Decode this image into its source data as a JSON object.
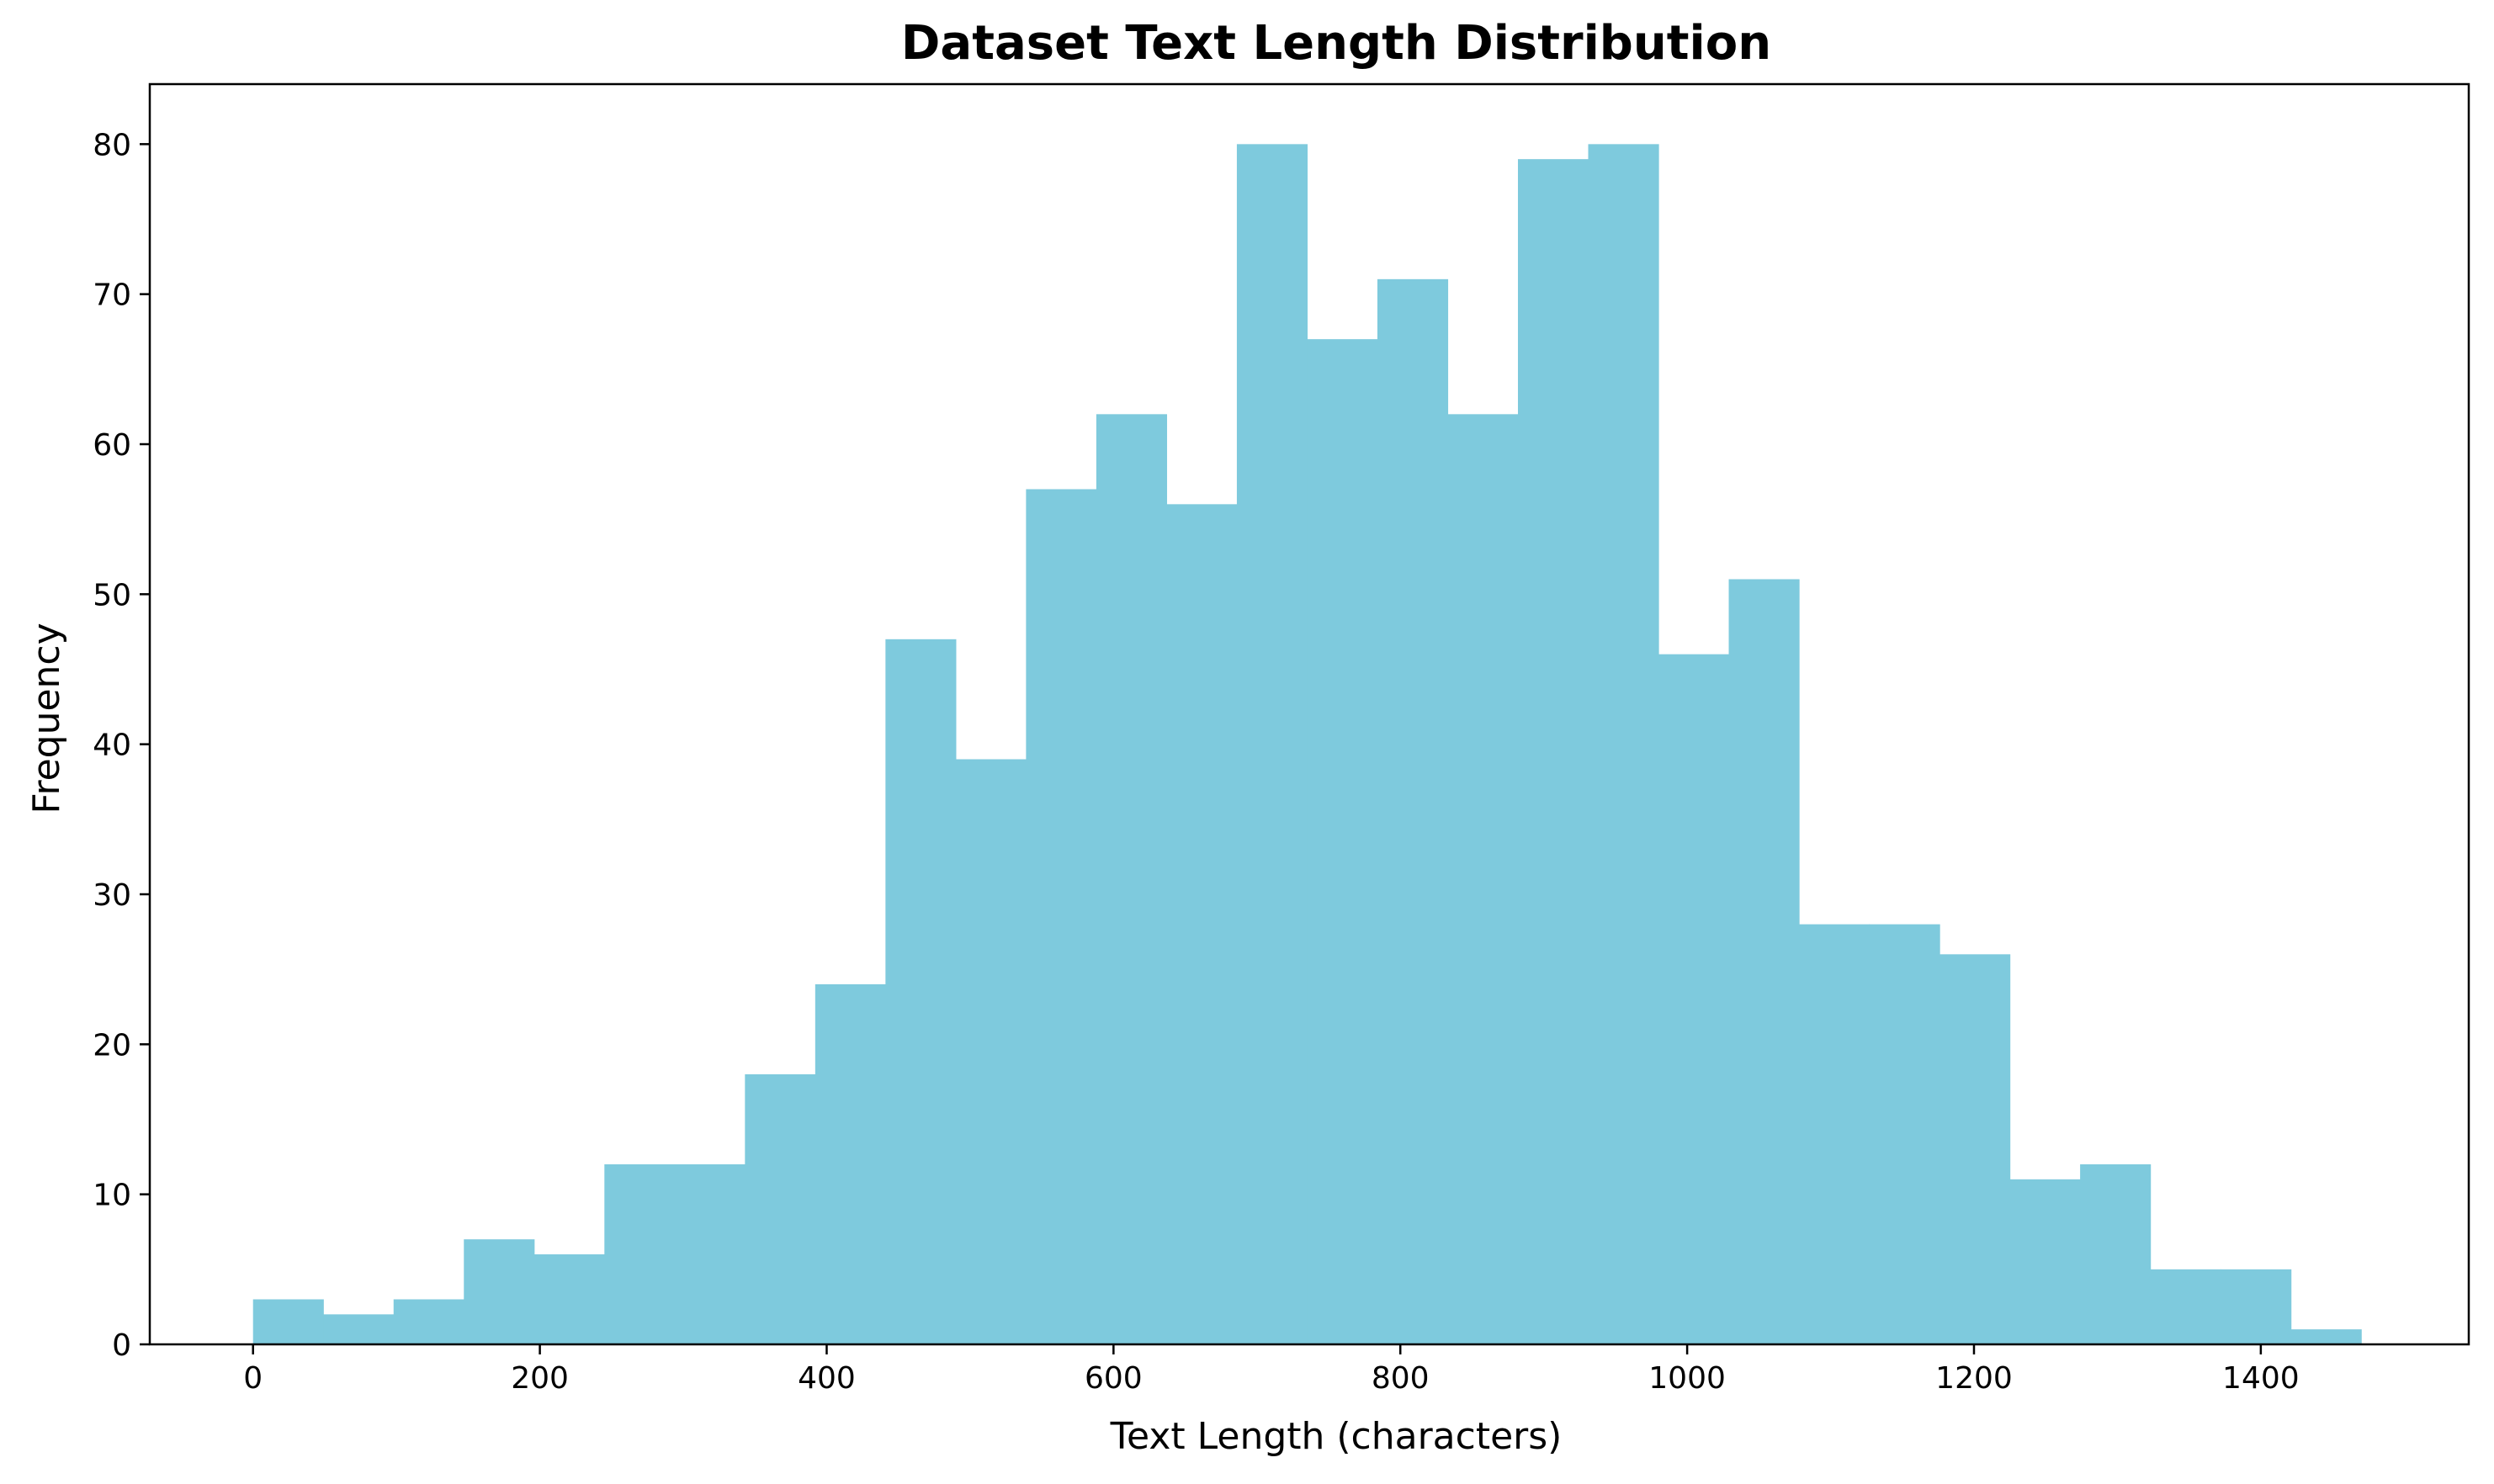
{
  "chart_data": {
    "type": "bar",
    "title": "Dataset Text Length Distribution",
    "xlabel": "Text Length (characters)",
    "ylabel": "Frequency",
    "bin_edges": [
      0,
      49,
      98,
      147,
      196,
      245,
      294,
      343,
      392,
      441,
      490,
      539,
      588,
      637,
      686,
      735,
      784,
      833,
      882,
      931,
      980,
      1029,
      1078,
      1127,
      1176,
      1225,
      1274,
      1323,
      1372,
      1421,
      1470
    ],
    "values": [
      3,
      2,
      3,
      7,
      6,
      12,
      12,
      18,
      24,
      47,
      39,
      57,
      62,
      56,
      80,
      67,
      71,
      62,
      79,
      80,
      46,
      51,
      28,
      28,
      26,
      11,
      12,
      5,
      5,
      1
    ],
    "xlim": [
      -72,
      1545
    ],
    "ylim": [
      0,
      84
    ],
    "x_ticks": [
      0,
      200,
      400,
      600,
      800,
      1000,
      1200,
      1400
    ],
    "y_ticks": [
      0,
      10,
      20,
      30,
      40,
      50,
      60,
      70,
      80
    ],
    "bar_color": "#7ecadd",
    "grid": false,
    "legend": "none"
  }
}
